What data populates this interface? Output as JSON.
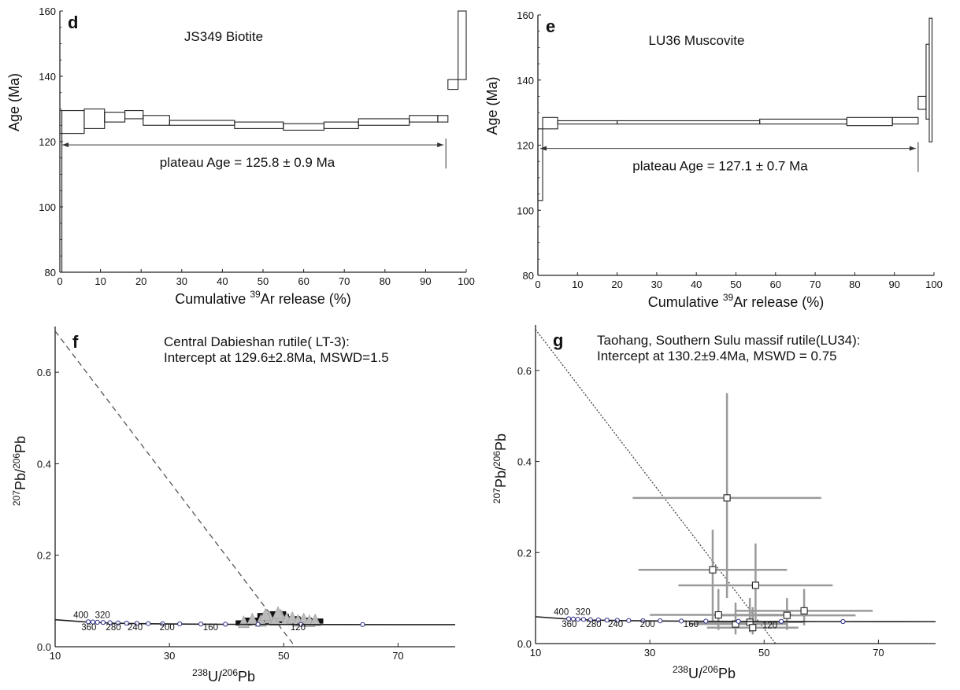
{
  "chart_data": [
    {
      "panel": "d",
      "type": "step",
      "title": "JS349 Biotite",
      "xlabel_parts": [
        "Cumulative ",
        "39",
        "Ar release (%)"
      ],
      "ylabel": "Age (Ma)",
      "xlim": [
        0,
        100
      ],
      "ylim": [
        80,
        160
      ],
      "xticks": [
        0,
        10,
        20,
        30,
        40,
        50,
        60,
        70,
        80,
        90,
        100
      ],
      "yticks": [
        80,
        100,
        120,
        140,
        160
      ],
      "annotation": "plateau Age = 125.8 ± 0.9 Ma",
      "plateau_range": [
        0,
        95
      ],
      "plateau_y": 119,
      "steps": [
        {
          "x0": 0,
          "x1": 6,
          "ylo": 122.5,
          "yhi": 129.5
        },
        {
          "x0": 6,
          "x1": 11,
          "ylo": 124,
          "yhi": 130
        },
        {
          "x0": 11,
          "x1": 16,
          "ylo": 126,
          "yhi": 129
        },
        {
          "x0": 16,
          "x1": 20.5,
          "ylo": 127,
          "yhi": 129.5
        },
        {
          "x0": 20.5,
          "x1": 27,
          "ylo": 125,
          "yhi": 128
        },
        {
          "x0": 27,
          "x1": 43,
          "ylo": 125,
          "yhi": 126.5
        },
        {
          "x0": 43,
          "x1": 55,
          "ylo": 124,
          "yhi": 126
        },
        {
          "x0": 55,
          "x1": 65,
          "ylo": 123.5,
          "yhi": 125.5
        },
        {
          "x0": 65,
          "x1": 73.5,
          "ylo": 124,
          "yhi": 126
        },
        {
          "x0": 73.5,
          "x1": 86,
          "ylo": 125,
          "yhi": 127
        },
        {
          "x0": 86,
          "x1": 93,
          "ylo": 126,
          "yhi": 128
        },
        {
          "x0": 93,
          "x1": 95.5,
          "ylo": 126,
          "yhi": 128
        },
        {
          "x0": 95.5,
          "x1": 98,
          "ylo": 136,
          "yhi": 139
        },
        {
          "x0": 98,
          "x1": 100,
          "ylo": 139,
          "yhi": 160
        }
      ],
      "edge_line": {
        "x": 0.5,
        "ylo": 80,
        "yhi": 129.5
      }
    },
    {
      "panel": "e",
      "type": "step",
      "title": "LU36 Muscovite",
      "xlabel_parts": [
        "Cumulative ",
        "39",
        "Ar release (%)"
      ],
      "ylabel": "Age (Ma)",
      "xlim": [
        0,
        100
      ],
      "ylim": [
        80,
        160
      ],
      "xticks": [
        0,
        10,
        20,
        30,
        40,
        50,
        60,
        70,
        80,
        90,
        100
      ],
      "yticks": [
        80,
        100,
        120,
        140,
        160
      ],
      "annotation": "plateau Age = 127.1 ± 0.7 Ma",
      "plateau_range": [
        0,
        96
      ],
      "plateau_y": 119,
      "steps": [
        {
          "x0": 0,
          "x1": 1.2,
          "ylo": 103,
          "yhi": 125
        },
        {
          "x0": 1.2,
          "x1": 5,
          "ylo": 125,
          "yhi": 128.5
        },
        {
          "x0": 5,
          "x1": 20,
          "ylo": 126.5,
          "yhi": 127.5
        },
        {
          "x0": 20,
          "x1": 56,
          "ylo": 126.5,
          "yhi": 127.5
        },
        {
          "x0": 56,
          "x1": 78,
          "ylo": 126.5,
          "yhi": 128
        },
        {
          "x0": 78,
          "x1": 89.5,
          "ylo": 126,
          "yhi": 128.5
        },
        {
          "x0": 89.5,
          "x1": 96,
          "ylo": 126.5,
          "yhi": 128.5
        },
        {
          "x0": 96,
          "x1": 98,
          "ylo": 131,
          "yhi": 135
        },
        {
          "x0": 98,
          "x1": 98.8,
          "ylo": 128,
          "yhi": 151
        },
        {
          "x0": 98.8,
          "x1": 99.5,
          "ylo": 121,
          "yhi": 159
        }
      ]
    },
    {
      "panel": "f",
      "type": "scatter",
      "title_lines": [
        "Central Dabieshan rutile( LT-3):",
        "Intercept at 129.6±2.8Ma, MSWD=1.5"
      ],
      "xlabel_parts": [
        "238",
        "U/",
        "206",
        "Pb"
      ],
      "ylabel_parts": [
        "207",
        "Pb/",
        "206",
        "Pb"
      ],
      "xlim": [
        10,
        80
      ],
      "ylim": [
        0,
        0.7
      ],
      "xticks": [
        10,
        30,
        50,
        70
      ],
      "yticks": [
        0.0,
        0.2,
        0.4,
        0.6
      ],
      "ytick_labels": [
        "0.0",
        "0.2",
        "0.4",
        "0.6"
      ],
      "concordia": {
        "x": [
          10,
          15,
          20,
          25,
          30,
          35,
          40,
          45,
          50,
          55,
          60,
          70,
          80
        ],
        "y": [
          0.059,
          0.0545,
          0.0515,
          0.0505,
          0.0498,
          0.0493,
          0.049,
          0.0488,
          0.0486,
          0.0485,
          0.0484,
          0.0483,
          0.0482
        ]
      },
      "concordia_markers": [
        {
          "x": 15.8,
          "y": 0.0545
        },
        {
          "x": 16.6,
          "y": 0.054
        },
        {
          "x": 17.4,
          "y": 0.0535
        },
        {
          "x": 18.4,
          "y": 0.053
        },
        {
          "x": 19.6,
          "y": 0.0524
        },
        {
          "x": 21,
          "y": 0.052
        },
        {
          "x": 22.5,
          "y": 0.0515
        },
        {
          "x": 24.3,
          "y": 0.051
        },
        {
          "x": 26.3,
          "y": 0.0506
        },
        {
          "x": 28.8,
          "y": 0.0502
        },
        {
          "x": 31.8,
          "y": 0.0499
        },
        {
          "x": 35.5,
          "y": 0.0495
        },
        {
          "x": 39.8,
          "y": 0.0492
        },
        {
          "x": 45.5,
          "y": 0.0489
        },
        {
          "x": 53,
          "y": 0.0487
        },
        {
          "x": 63.8,
          "y": 0.0484
        }
      ],
      "concordia_labels": [
        {
          "text": "400",
          "x": 14.5,
          "y": 0.063
        },
        {
          "text": "320",
          "x": 18.3,
          "y": 0.063
        },
        {
          "text": "360",
          "x": 15.9,
          "y": 0.036
        },
        {
          "text": "280",
          "x": 20.2,
          "y": 0.036
        },
        {
          "text": "240",
          "x": 24,
          "y": 0.036
        },
        {
          "text": "200",
          "x": 29.6,
          "y": 0.036
        },
        {
          "text": "160",
          "x": 37.2,
          "y": 0.036
        },
        {
          "text": "120",
          "x": 52.5,
          "y": 0.036
        }
      ],
      "regression": {
        "x0": 10,
        "y0": 0.69,
        "x1": 52,
        "y1": 0.0
      },
      "cluster": {
        "points": [
          {
            "x": 43,
            "y": 0.052
          },
          {
            "x": 44.5,
            "y": 0.058
          },
          {
            "x": 46,
            "y": 0.055
          },
          {
            "x": 47.5,
            "y": 0.062
          },
          {
            "x": 48.5,
            "y": 0.057
          },
          {
            "x": 49.5,
            "y": 0.066
          },
          {
            "x": 50.5,
            "y": 0.059
          },
          {
            "x": 51.5,
            "y": 0.061
          },
          {
            "x": 52.5,
            "y": 0.055
          },
          {
            "x": 53.5,
            "y": 0.058
          },
          {
            "x": 54.5,
            "y": 0.054
          },
          {
            "x": 55.5,
            "y": 0.056
          },
          {
            "x": 46.8,
            "y": 0.068
          },
          {
            "x": 49,
            "y": 0.072
          }
        ]
      }
    },
    {
      "panel": "g",
      "type": "scatter",
      "title_lines": [
        "Taohang, Southern Sulu massif rutile(LU34):",
        "Intercept at 130.2±9.4Ma, MSWD = 0.75"
      ],
      "xlabel_parts": [
        "238",
        "U/",
        "206",
        "Pb"
      ],
      "ylabel_parts": [
        "207",
        "Pb/",
        "206",
        "Pb"
      ],
      "xlim": [
        10,
        80
      ],
      "ylim": [
        0,
        0.7
      ],
      "xticks": [
        10,
        30,
        50,
        70
      ],
      "yticks": [
        0.0,
        0.2,
        0.4,
        0.6
      ],
      "ytick_labels": [
        "0.0",
        "0.2",
        "0.4",
        "0.6"
      ],
      "concordia": {
        "x": [
          10,
          15,
          20,
          25,
          30,
          35,
          40,
          45,
          50,
          55,
          60,
          70,
          80
        ],
        "y": [
          0.059,
          0.0545,
          0.0515,
          0.0505,
          0.0498,
          0.0493,
          0.049,
          0.0488,
          0.0486,
          0.0485,
          0.0484,
          0.0483,
          0.0482
        ]
      },
      "concordia_markers": [
        {
          "x": 15.8,
          "y": 0.0545
        },
        {
          "x": 16.6,
          "y": 0.054
        },
        {
          "x": 17.4,
          "y": 0.0535
        },
        {
          "x": 18.4,
          "y": 0.053
        },
        {
          "x": 19.6,
          "y": 0.0524
        },
        {
          "x": 21,
          "y": 0.052
        },
        {
          "x": 22.5,
          "y": 0.0515
        },
        {
          "x": 24.3,
          "y": 0.051
        },
        {
          "x": 26.3,
          "y": 0.0506
        },
        {
          "x": 28.8,
          "y": 0.0502
        },
        {
          "x": 31.8,
          "y": 0.0499
        },
        {
          "x": 35.5,
          "y": 0.0495
        },
        {
          "x": 39.8,
          "y": 0.0492
        },
        {
          "x": 45.5,
          "y": 0.0489
        },
        {
          "x": 53,
          "y": 0.0487
        },
        {
          "x": 63.8,
          "y": 0.0484
        }
      ],
      "concordia_labels": [
        {
          "text": "400",
          "x": 14.5,
          "y": 0.063
        },
        {
          "text": "320",
          "x": 18.3,
          "y": 0.063
        },
        {
          "text": "360",
          "x": 15.9,
          "y": 0.036
        },
        {
          "text": "280",
          "x": 20.2,
          "y": 0.036
        },
        {
          "text": "240",
          "x": 24,
          "y": 0.036
        },
        {
          "text": "200",
          "x": 29.6,
          "y": 0.036
        },
        {
          "text": "160",
          "x": 37.2,
          "y": 0.036
        },
        {
          "text": "120",
          "x": 51,
          "y": 0.034
        }
      ],
      "regression": {
        "x0": 10,
        "y0": 0.69,
        "x1": 52,
        "y1": 0.0
      },
      "points": [
        {
          "x": 43.5,
          "y": 0.32,
          "xerr": [
            27,
            60
          ],
          "yerr": [
            0.1,
            0.55
          ]
        },
        {
          "x": 41,
          "y": 0.162,
          "xerr": [
            28,
            54
          ],
          "yerr": [
            0.05,
            0.25
          ]
        },
        {
          "x": 48.5,
          "y": 0.128,
          "xerr": [
            35,
            62
          ],
          "yerr": [
            0.04,
            0.22
          ]
        },
        {
          "x": 42,
          "y": 0.063,
          "xerr": [
            30,
            55
          ],
          "yerr": [
            0.03,
            0.12
          ]
        },
        {
          "x": 47.5,
          "y": 0.047,
          "xerr": [
            38,
            57
          ],
          "yerr": [
            0.025,
            0.1
          ]
        },
        {
          "x": 48,
          "y": 0.035,
          "xerr": [
            40,
            56
          ],
          "yerr": [
            0.02,
            0.08
          ]
        },
        {
          "x": 45,
          "y": 0.043,
          "xerr": [
            37,
            54
          ],
          "yerr": [
            0.02,
            0.09
          ]
        },
        {
          "x": 54,
          "y": 0.062,
          "xerr": [
            42,
            66
          ],
          "yerr": [
            0.03,
            0.1
          ]
        },
        {
          "x": 57,
          "y": 0.072,
          "xerr": [
            45,
            69
          ],
          "yerr": [
            0.04,
            0.12
          ]
        }
      ]
    }
  ]
}
